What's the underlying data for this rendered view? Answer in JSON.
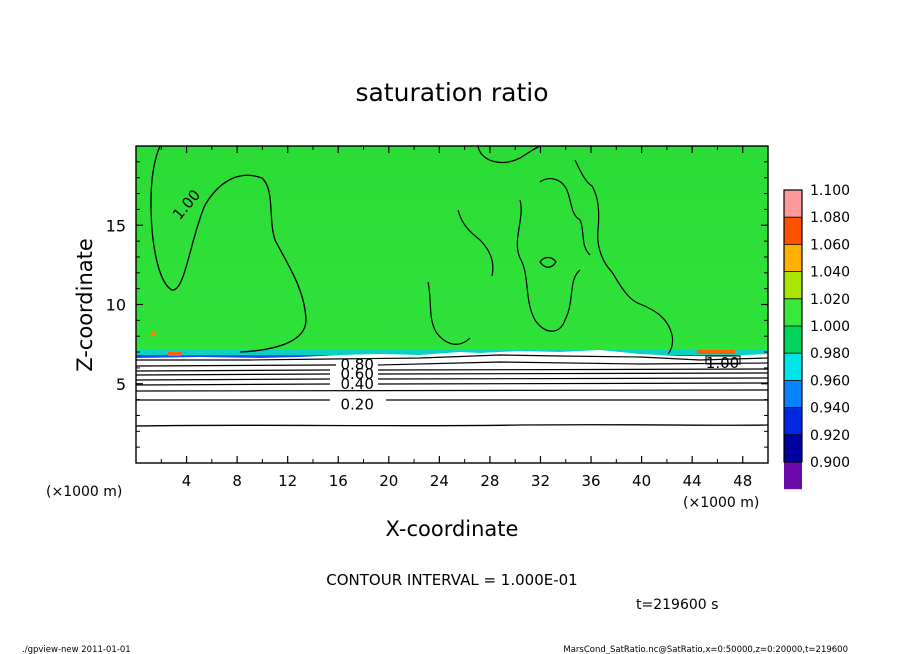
{
  "chart_data": {
    "type": "heatmap",
    "title": "saturation ratio",
    "xlabel": "X-coordinate",
    "ylabel": "Z-coordinate",
    "x_unit_left": "(×1000 m)",
    "x_unit_right": "(×1000 m)",
    "xlim": [
      0,
      50
    ],
    "ylim": [
      0,
      20
    ],
    "x_ticks": [
      4,
      8,
      12,
      16,
      20,
      24,
      28,
      32,
      36,
      40,
      44,
      48
    ],
    "y_ticks": [
      5,
      10,
      15
    ],
    "colorbar": {
      "levels": [
        "0.900",
        "0.920",
        "0.940",
        "0.960",
        "0.980",
        "1.000",
        "1.020",
        "1.040",
        "1.060",
        "1.080",
        "1.100"
      ],
      "colors": [
        "#6a0aa8",
        "#0000a0",
        "#0028e0",
        "#0a82ff",
        "#00e6e6",
        "#00d45a",
        "#39e83c",
        "#a6e600",
        "#ffb000",
        "#ff5000",
        "#ff9a9a"
      ]
    },
    "contour_labels": [
      {
        "text": "1.00",
        "x": 4.0,
        "z": 16.3
      },
      {
        "text": "0.80",
        "x": 17.5,
        "z": 6.2
      },
      {
        "text": "0.60",
        "x": 17.5,
        "z": 5.6
      },
      {
        "text": "0.40",
        "x": 17.5,
        "z": 5.0
      },
      {
        "text": "0.20",
        "x": 17.5,
        "z": 3.7
      },
      {
        "text": "1.00",
        "x": 46.4,
        "z": 6.3
      }
    ],
    "contour_interval_text": "CONTOUR INTERVAL = 1.000E-01",
    "time_text": "t=219600 s",
    "footer_left": "./gpview-new  2011-01-01",
    "footer_right": "MarsCond_SatRatio.nc@SatRatio,x=0:50000,z=0:20000,t=219600"
  }
}
